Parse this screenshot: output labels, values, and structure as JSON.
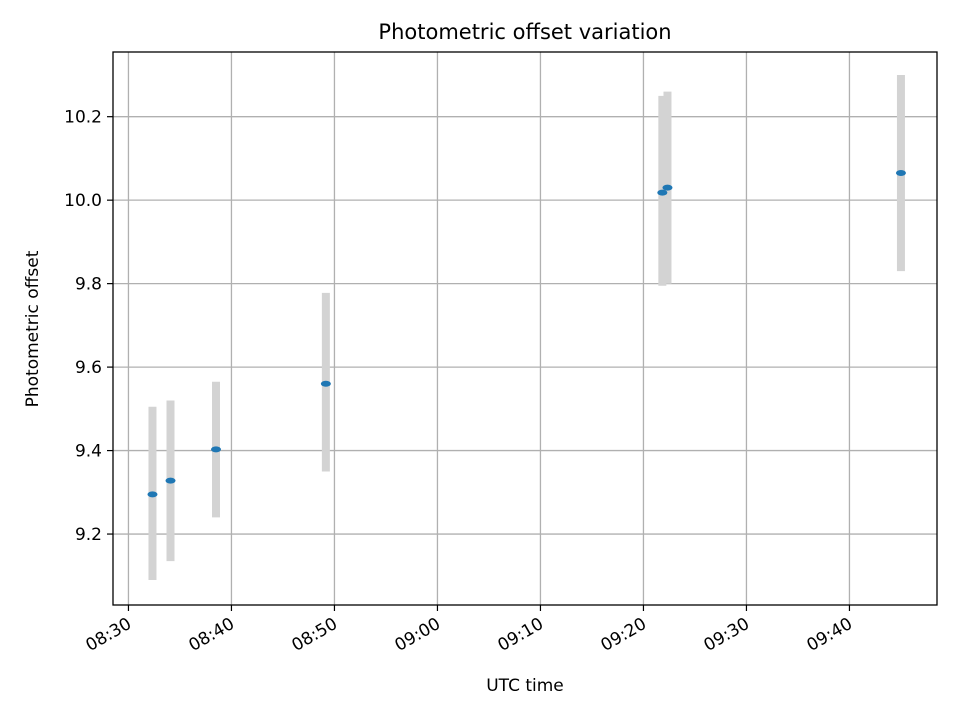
{
  "chart_data": {
    "type": "scatter",
    "title": "Photometric offset variation",
    "xlabel": "UTC time",
    "ylabel": "Photometric offset",
    "x_ticks": [
      "08:30",
      "08:40",
      "08:50",
      "09:00",
      "09:10",
      "09:20",
      "09:30",
      "09:40"
    ],
    "y_ticks": [
      "9.2",
      "9.4",
      "9.6",
      "9.8",
      "10.0",
      "10.2"
    ],
    "xlim": [
      "08:28:30",
      "09:48:30"
    ],
    "ylim": [
      9.03,
      10.355
    ],
    "grid": true,
    "series": [
      {
        "marker_color": "#1f77b4",
        "errorbar_color": "#d3d3d3",
        "points": [
          {
            "x": "08:32:20",
            "y": 9.295,
            "ylow": 9.09,
            "yhigh": 9.505
          },
          {
            "x": "08:34:05",
            "y": 9.328,
            "ylow": 9.135,
            "yhigh": 9.52
          },
          {
            "x": "08:38:30",
            "y": 9.403,
            "ylow": 9.24,
            "yhigh": 9.565
          },
          {
            "x": "08:49:10",
            "y": 9.56,
            "ylow": 9.35,
            "yhigh": 9.778
          },
          {
            "x": "09:21:50",
            "y": 10.018,
            "ylow": 9.795,
            "yhigh": 10.25
          },
          {
            "x": "09:22:20",
            "y": 10.03,
            "ylow": 9.8,
            "yhigh": 10.26
          },
          {
            "x": "09:45:00",
            "y": 10.065,
            "ylow": 9.83,
            "yhigh": 10.3
          }
        ]
      }
    ]
  }
}
